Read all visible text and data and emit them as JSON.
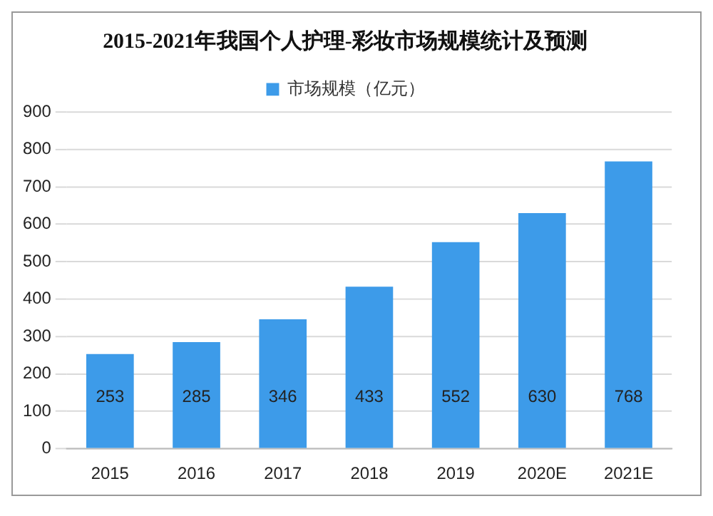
{
  "chart_data": {
    "type": "bar",
    "title": "2015-2021年我国个人护理-彩妆市场规模统计及预测",
    "categories": [
      "2015",
      "2016",
      "2017",
      "2018",
      "2019",
      "2020E",
      "2021E"
    ],
    "series": [
      {
        "name": "市场规模（亿元）",
        "color": "#3d9be9",
        "values": [
          253,
          285,
          346,
          433,
          552,
          630,
          768
        ]
      }
    ],
    "ylim": [
      0,
      900
    ],
    "yticks": [
      0,
      100,
      200,
      300,
      400,
      500,
      600,
      700,
      800,
      900
    ],
    "grid": "y",
    "legend": "top",
    "data_labels": true
  }
}
